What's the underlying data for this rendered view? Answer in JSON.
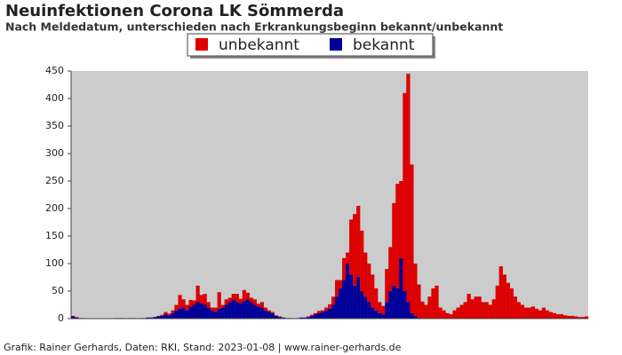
{
  "chart_data": {
    "type": "bar",
    "stacked": true,
    "title": "Neuinfektionen Corona LK Sömmerda",
    "subtitle": "Nach Meldedatum, unterschieden nach Erkrankungsbeginn bekannt/unbekannt",
    "footer": "Grafik: Rainer Gerhards, Daten: RKI, Stand: 2023-01-08 | www.rainer-gerhards.de",
    "ylim": [
      0,
      450
    ],
    "yticks": [
      0,
      50,
      100,
      150,
      200,
      250,
      300,
      350,
      400,
      450
    ],
    "background": "#cccccc",
    "series": [
      {
        "name": "bekannt",
        "color": "#000099",
        "values": [
          4,
          2,
          1,
          1,
          0,
          0,
          0,
          0,
          0,
          0,
          0,
          0,
          1,
          1,
          1,
          0,
          1,
          1,
          0,
          1,
          1,
          2,
          2,
          3,
          4,
          5,
          8,
          6,
          10,
          15,
          18,
          20,
          15,
          22,
          25,
          30,
          28,
          25,
          20,
          15,
          12,
          18,
          20,
          25,
          30,
          35,
          30,
          28,
          32,
          35,
          30,
          25,
          22,
          20,
          15,
          12,
          10,
          5,
          3,
          2,
          1,
          1,
          0,
          1,
          2,
          2,
          3,
          5,
          8,
          10,
          12,
          15,
          18,
          25,
          40,
          55,
          70,
          100,
          80,
          60,
          75,
          50,
          40,
          30,
          20,
          15,
          10,
          8,
          30,
          50,
          60,
          55,
          110,
          50,
          30,
          10,
          5,
          2,
          1,
          0,
          0,
          0,
          0,
          0,
          0,
          0,
          0,
          0,
          0,
          0,
          0,
          0,
          0,
          0,
          0,
          0,
          0,
          0,
          0,
          0,
          0,
          0,
          0,
          0,
          0,
          0,
          0,
          0,
          0,
          0,
          0,
          0,
          0,
          0,
          0,
          0,
          0,
          0,
          0,
          0,
          0,
          0,
          0,
          0,
          0
        ]
      },
      {
        "name": "unbekannt",
        "color": "#dd0000",
        "values": [
          1,
          1,
          0,
          0,
          0,
          0,
          0,
          0,
          0,
          0,
          0,
          0,
          0,
          0,
          0,
          0,
          0,
          0,
          0,
          0,
          0,
          0,
          0,
          0,
          1,
          2,
          4,
          3,
          5,
          10,
          25,
          15,
          10,
          12,
          8,
          30,
          15,
          20,
          10,
          5,
          8,
          30,
          5,
          10,
          8,
          10,
          15,
          8,
          20,
          12,
          8,
          10,
          5,
          10,
          5,
          3,
          2,
          1,
          1,
          0,
          0,
          0,
          0,
          0,
          0,
          0,
          1,
          2,
          2,
          4,
          3,
          5,
          8,
          15,
          30,
          15,
          40,
          20,
          100,
          130,
          130,
          110,
          80,
          70,
          60,
          40,
          20,
          15,
          60,
          80,
          150,
          190,
          140,
          360,
          415,
          270,
          95,
          60,
          30,
          25,
          40,
          55,
          60,
          20,
          15,
          10,
          8,
          15,
          20,
          25,
          30,
          45,
          35,
          40,
          40,
          30,
          30,
          25,
          35,
          60,
          95,
          80,
          65,
          55,
          40,
          30,
          25,
          20,
          20,
          22,
          18,
          15,
          20,
          15,
          12,
          10,
          8,
          8,
          6,
          5,
          5,
          4,
          3,
          3,
          4
        ]
      }
    ],
    "legend_order": [
      1,
      0
    ]
  }
}
